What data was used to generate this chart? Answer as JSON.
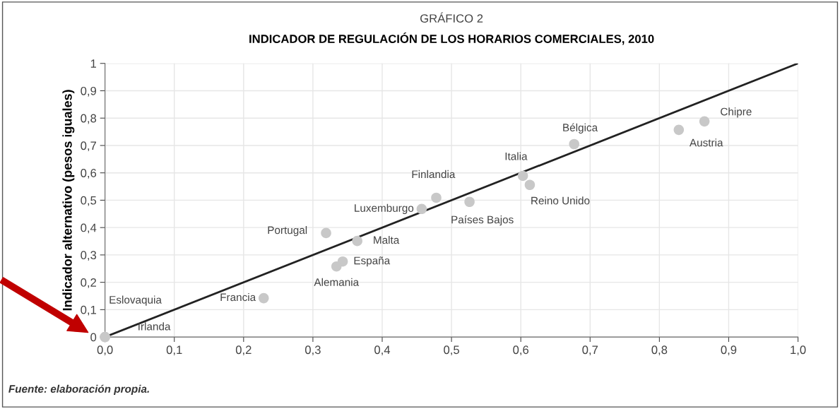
{
  "chart_data": {
    "type": "scatter",
    "title": "GRÁFICO 2",
    "subtitle": "INDICADOR DE REGULACIÓN DE LOS HORARIOS COMERCIALES, 2010",
    "ylabel": "Indicador alternativo (pesos iguales)",
    "xlim": [
      0,
      1.0
    ],
    "ylim": [
      0,
      1
    ],
    "xticks": [
      {
        "value": 0,
        "label": "0,0"
      },
      {
        "value": 0.1,
        "label": "0,1"
      },
      {
        "value": 0.2,
        "label": "0,2"
      },
      {
        "value": 0.3,
        "label": "0,3"
      },
      {
        "value": 0.4,
        "label": "0,4"
      },
      {
        "value": 0.5,
        "label": "0,5"
      },
      {
        "value": 0.6,
        "label": "0,6"
      },
      {
        "value": 0.7,
        "label": "0,7"
      },
      {
        "value": 0.8,
        "label": "0,8"
      },
      {
        "value": 0.9,
        "label": "0,9"
      },
      {
        "value": 1.0,
        "label": "1,0"
      }
    ],
    "yticks": [
      0,
      {
        "value": 0.1,
        "label": "0,1"
      },
      {
        "value": 0.2,
        "label": "0,2"
      },
      {
        "value": 0.3,
        "label": "0,3"
      },
      {
        "value": 0.4,
        "label": "0,4"
      },
      {
        "value": 0.5,
        "label": "0,5"
      },
      {
        "value": 0.6,
        "label": "0,6"
      },
      {
        "value": 0.7,
        "label": "0,7"
      },
      {
        "value": 0.8,
        "label": "0,8"
      },
      {
        "value": 0.9,
        "label": "0,9"
      },
      1
    ],
    "grid": true,
    "series": [
      {
        "type": "line",
        "color": "#222222",
        "x": [
          0,
          1
        ],
        "values": [
          0,
          1
        ]
      },
      {
        "marker": "circle",
        "color": "#c8c8c8",
        "x": [
          0.0,
          0.0,
          0.229,
          0.319,
          0.364,
          0.343,
          0.334,
          0.457,
          0.478,
          0.526,
          0.603,
          0.613,
          0.677,
          0.828,
          0.865
        ],
        "values": [
          0.0,
          0.0,
          0.142,
          0.38,
          0.351,
          0.276,
          0.258,
          0.468,
          0.509,
          0.494,
          0.589,
          0.556,
          0.705,
          0.757,
          0.788
        ]
      }
    ],
    "annotations": [
      {
        "text": "Eslovaquia",
        "x": 0.0,
        "y": 0.0
      },
      "Irlanda",
      {
        "text": "Francia",
        "x": 0.229,
        "y": 0.142
      },
      {
        "text": "Portugal",
        "x": 0.319,
        "y": 0.38
      },
      {
        "text": "Malta",
        "x": 0.364,
        "y": 0.351
      },
      {
        "text": "España",
        "x": 0.343,
        "y": 0.276
      },
      {
        "text": "Alemania",
        "x": 0.334,
        "y": 0.258
      },
      {
        "text": "Luxemburgo",
        "x": 0.457,
        "y": 0.468
      },
      {
        "text": "Finlandia",
        "x": 0.478,
        "y": 0.509
      },
      {
        "text": "Países Bajos",
        "x": 0.526,
        "y": 0.494
      },
      {
        "text": "Italia",
        "x": 0.603,
        "y": 0.589
      },
      {
        "text": "Reino Unido",
        "x": 0.613,
        "y": 0.556
      },
      {
        "text": "Bélgica",
        "x": 0.677,
        "y": 0.705
      },
      {
        "text": "Austria",
        "x": 0.828,
        "y": 0.757
      },
      {
        "text": "Chipre",
        "x": 0.865,
        "y": 0.788
      },
      "Fuente: elaboración propia."
    ]
  }
}
